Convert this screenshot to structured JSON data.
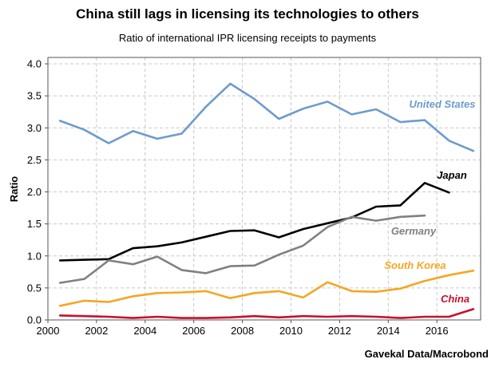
{
  "chart_data": {
    "type": "line",
    "title": "China still lags in licensing its technologies to others",
    "subtitle": "Ratio of international IPR licensing receipts to payments",
    "ylabel": "Ratio",
    "source": "Gavekal Data/Macrobond",
    "xlim": [
      2000,
      2017.8
    ],
    "ylim": [
      0,
      4.1
    ],
    "xticks": [
      2000,
      2002,
      2004,
      2006,
      2008,
      2010,
      2012,
      2014,
      2016
    ],
    "yticks": [
      0.0,
      0.5,
      1.0,
      1.5,
      2.0,
      2.5,
      3.0,
      3.5,
      4.0
    ],
    "grid": true,
    "series": [
      {
        "name": "United States",
        "color": "#6d9bcd",
        "x": [
          2000.5,
          2001.5,
          2002.5,
          2003.5,
          2004.5,
          2005.5,
          2006.5,
          2007.5,
          2008.5,
          2009.5,
          2010.5,
          2011.5,
          2012.5,
          2013.5,
          2014.5,
          2015.5,
          2016.5,
          2017.5
        ],
        "y": [
          3.11,
          2.97,
          2.76,
          2.95,
          2.83,
          2.91,
          3.33,
          3.69,
          3.45,
          3.14,
          3.3,
          3.41,
          3.21,
          3.29,
          3.09,
          3.12,
          2.8,
          2.64
        ]
      },
      {
        "name": "Japan",
        "color": "#000000",
        "x": [
          2000.5,
          2001.5,
          2002.5,
          2003.5,
          2004.5,
          2005.5,
          2006.5,
          2007.5,
          2008.5,
          2009.5,
          2010.5,
          2011.5,
          2012.5,
          2013.5,
          2014.5,
          2015.5,
          2016.5
        ],
        "y": [
          0.93,
          0.94,
          0.95,
          1.12,
          1.15,
          1.21,
          1.3,
          1.39,
          1.4,
          1.29,
          1.42,
          1.51,
          1.6,
          1.77,
          1.79,
          2.14,
          1.99
        ]
      },
      {
        "name": "Germany",
        "color": "#808080",
        "x": [
          2000.5,
          2001.5,
          2002.5,
          2003.5,
          2004.5,
          2005.5,
          2006.5,
          2007.5,
          2008.5,
          2009.5,
          2010.5,
          2011.5,
          2012.5,
          2013.5,
          2014.5,
          2015.5
        ],
        "y": [
          0.58,
          0.64,
          0.93,
          0.87,
          0.99,
          0.78,
          0.73,
          0.84,
          0.85,
          1.02,
          1.16,
          1.45,
          1.61,
          1.55,
          1.61,
          1.63
        ]
      },
      {
        "name": "South Korea",
        "color": "#f5a623",
        "x": [
          2000.5,
          2001.5,
          2002.5,
          2003.5,
          2004.5,
          2005.5,
          2006.5,
          2007.5,
          2008.5,
          2009.5,
          2010.5,
          2011.5,
          2012.5,
          2013.5,
          2014.5,
          2015.5,
          2016.5,
          2017.5
        ],
        "y": [
          0.22,
          0.3,
          0.28,
          0.37,
          0.42,
          0.43,
          0.45,
          0.34,
          0.42,
          0.45,
          0.35,
          0.59,
          0.45,
          0.44,
          0.49,
          0.61,
          0.7,
          0.77
        ]
      },
      {
        "name": "China",
        "color": "#c8102e",
        "x": [
          2000.5,
          2001.5,
          2002.5,
          2003.5,
          2004.5,
          2005.5,
          2006.5,
          2007.5,
          2008.5,
          2009.5,
          2010.5,
          2011.5,
          2012.5,
          2013.5,
          2014.5,
          2015.5,
          2016.5,
          2017.5
        ],
        "y": [
          0.07,
          0.06,
          0.05,
          0.03,
          0.05,
          0.03,
          0.03,
          0.04,
          0.06,
          0.04,
          0.06,
          0.05,
          0.06,
          0.05,
          0.03,
          0.05,
          0.05,
          0.17
        ]
      }
    ]
  }
}
